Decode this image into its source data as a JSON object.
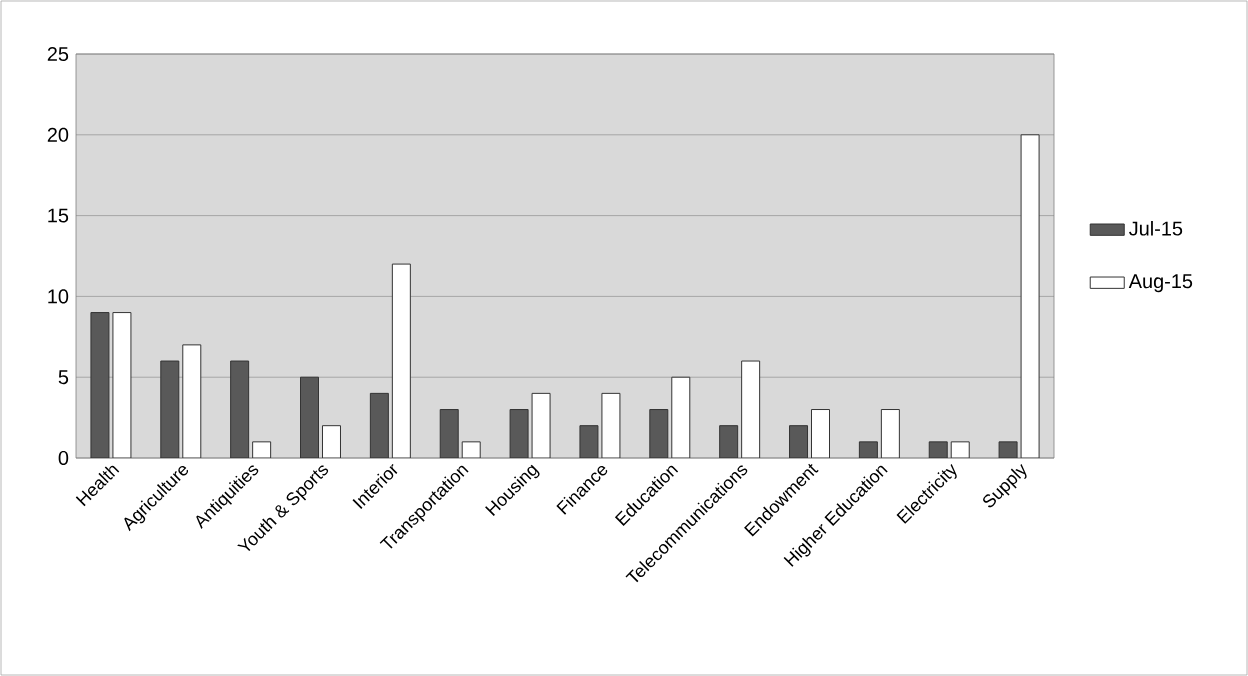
{
  "chart_data": {
    "type": "bar",
    "categories": [
      "Health",
      "Agriculture",
      "Antiquities",
      "Youth & Sports",
      "Interior",
      "Transportation",
      "Housing",
      "Finance",
      "Education",
      "Telecommunications",
      "Endowment",
      "Higher Education",
      "Electricity",
      "Supply"
    ],
    "series": [
      {
        "name": "Jul-15",
        "color": "#595959",
        "values": [
          9,
          6,
          6,
          5,
          4,
          3,
          3,
          2,
          3,
          2,
          2,
          1,
          1,
          1
        ]
      },
      {
        "name": "Aug-15",
        "color": "#ffffff",
        "values": [
          9,
          7,
          1,
          2,
          12,
          1,
          4,
          4,
          5,
          6,
          3,
          3,
          1,
          20
        ]
      }
    ],
    "ylim": [
      0,
      25
    ],
    "yticks": [
      0,
      5,
      10,
      15,
      20,
      25
    ],
    "grid": "y",
    "legend": "right"
  }
}
